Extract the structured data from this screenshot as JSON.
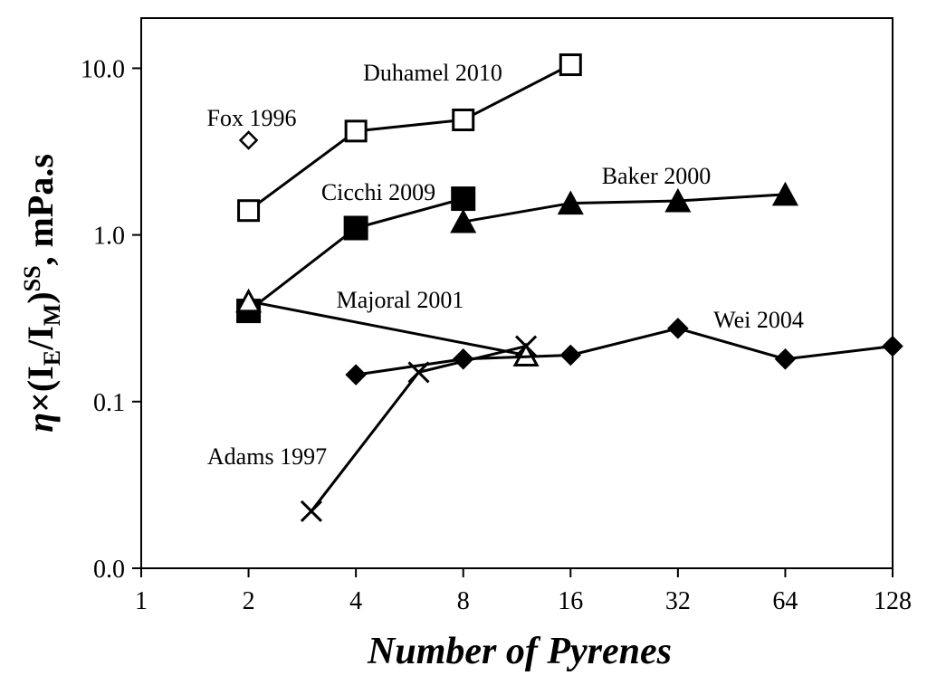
{
  "chart_data": {
    "type": "scatter",
    "title": "",
    "xlabel": "Number of Pyrenes",
    "ylabel": {
      "eta": "η",
      "times": "×(I",
      "sub_e": "E",
      "slash": "/I",
      "sub_m": "M",
      "close": ")",
      "sup": "SS",
      "unit": ", mPa.s"
    },
    "x_scale": "log2",
    "y_scale": "log10",
    "xlim": [
      1,
      128
    ],
    "ylim": [
      0.01,
      20
    ],
    "x_ticks": [
      {
        "value": 1,
        "label": "1"
      },
      {
        "value": 2,
        "label": "2"
      },
      {
        "value": 4,
        "label": "4"
      },
      {
        "value": 8,
        "label": "8"
      },
      {
        "value": 16,
        "label": "16"
      },
      {
        "value": 32,
        "label": "32"
      },
      {
        "value": 64,
        "label": "64"
      },
      {
        "value": 128,
        "label": "128"
      }
    ],
    "y_ticks": [
      {
        "value": 0.01,
        "label": "0.0"
      },
      {
        "value": 0.1,
        "label": "0.1"
      },
      {
        "value": 1,
        "label": "1.0"
      },
      {
        "value": 10,
        "label": "10.0"
      }
    ],
    "grid": false,
    "legend": "none",
    "series": [
      {
        "name": "Duhamel 2010",
        "marker": "square-open",
        "line": true,
        "x": [
          2,
          4,
          8,
          16
        ],
        "y": [
          1.4,
          4.2,
          4.9,
          10.5
        ]
      },
      {
        "name": "Fox 1996",
        "marker": "diamond-open",
        "line": false,
        "x": [
          2
        ],
        "y": [
          3.7
        ]
      },
      {
        "name": "Cicchi 2009",
        "marker": "square-filled",
        "line": true,
        "x": [
          2,
          4,
          8
        ],
        "y": [
          0.35,
          1.1,
          1.65
        ]
      },
      {
        "name": "Baker 2000",
        "marker": "triangle-filled",
        "line": true,
        "x": [
          8,
          16,
          32,
          64
        ],
        "y": [
          1.2,
          1.55,
          1.6,
          1.75
        ]
      },
      {
        "name": "Majoral 2001",
        "marker": "triangle-open",
        "line": true,
        "x": [
          2,
          12
        ],
        "y": [
          0.4,
          0.19
        ]
      },
      {
        "name": "Wei 2004",
        "marker": "diamond-filled",
        "line": true,
        "x": [
          4,
          8,
          16,
          32,
          64,
          128
        ],
        "y": [
          0.145,
          0.18,
          0.19,
          0.275,
          0.18,
          0.215
        ]
      },
      {
        "name": "Adams 1997",
        "marker": "x",
        "line": true,
        "x": [
          3,
          6,
          12
        ],
        "y": [
          0.022,
          0.15,
          0.215
        ]
      }
    ],
    "annotations": [
      {
        "text": "Duhamel 2010",
        "series": 0
      },
      {
        "text": "Fox 1996",
        "series": 1
      },
      {
        "text": "Cicchi 2009",
        "series": 2
      },
      {
        "text": "Baker 2000",
        "series": 3
      },
      {
        "text": "Majoral 2001",
        "series": 4
      },
      {
        "text": "Wei 2004",
        "series": 5
      },
      {
        "text": "Adams 1997",
        "series": 6
      }
    ]
  }
}
